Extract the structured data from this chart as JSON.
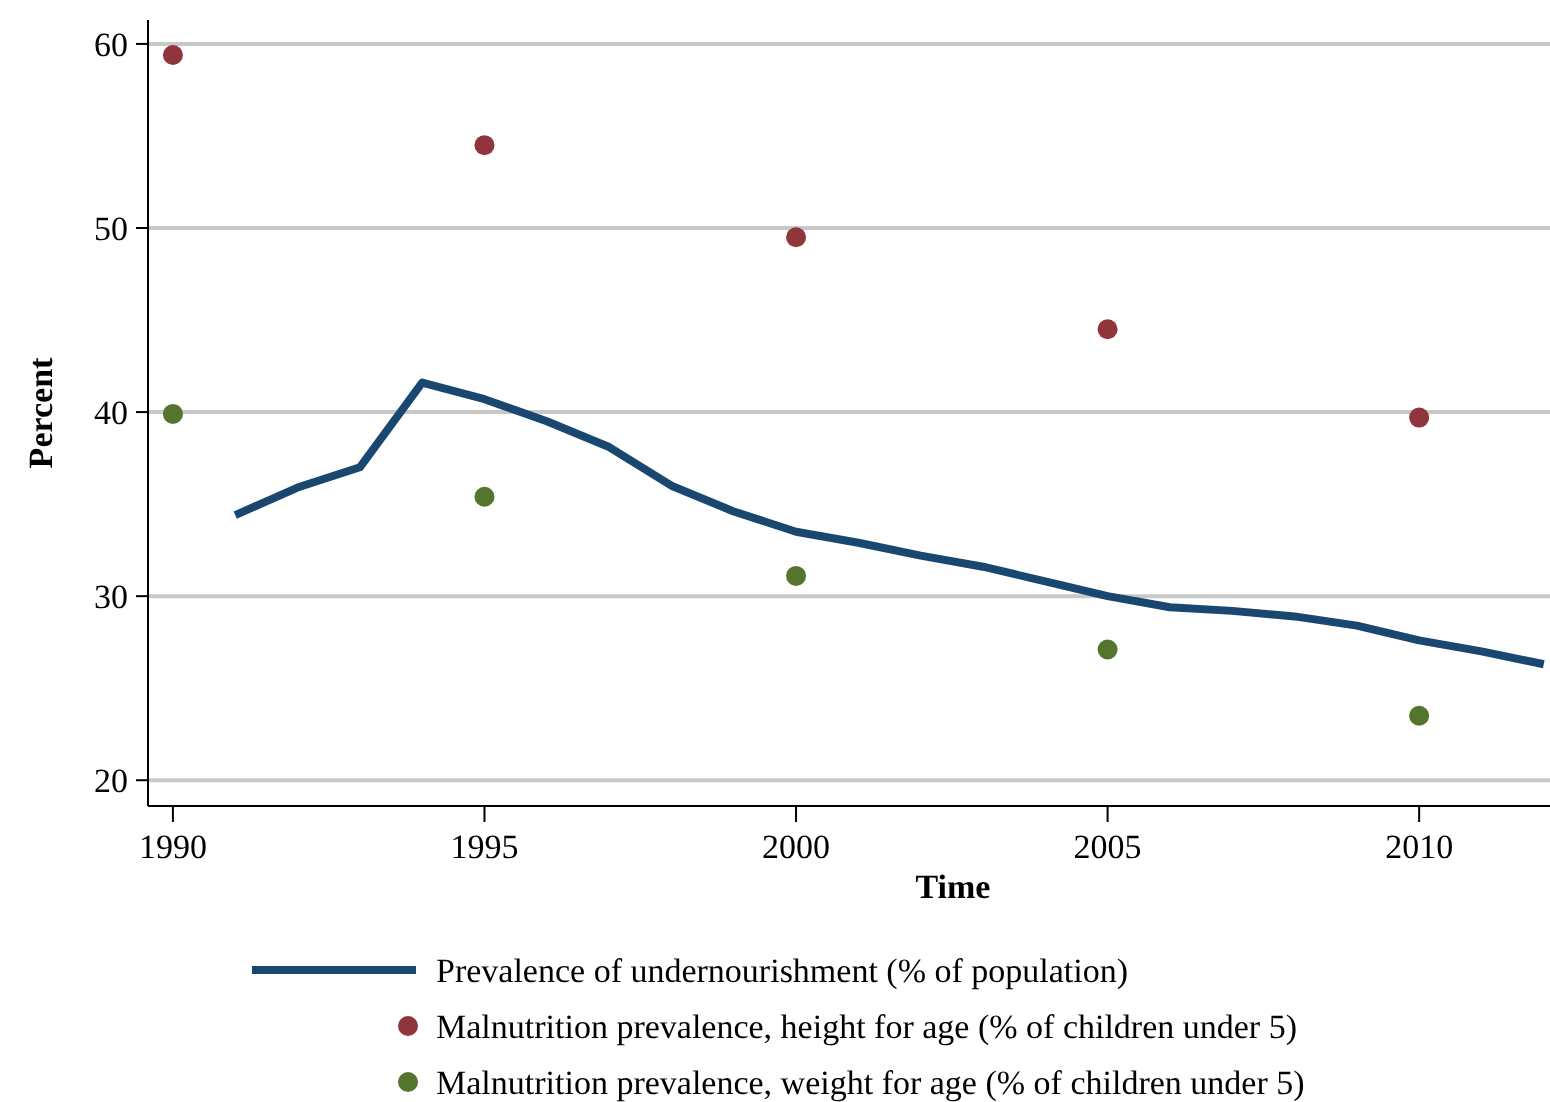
{
  "chart_data": {
    "type": "line",
    "xlabel": "Time",
    "ylabel": "Percent",
    "xlim": [
      1989.6,
      2012.1
    ],
    "ylim": [
      18.6,
      61.3
    ],
    "xticks": [
      1990,
      1995,
      2000,
      2005,
      2010
    ],
    "yticks": [
      20,
      30,
      40,
      50,
      60
    ],
    "grid": "y",
    "legend": "bottom",
    "series": [
      {
        "name": "Prevalence of undernourishment (% of population)",
        "color": "#1a476f",
        "x": [
          1991,
          1992,
          1993,
          1994,
          1995,
          1996,
          1997,
          1998,
          1999,
          2000,
          2001,
          2002,
          2003,
          2004,
          2005,
          2006,
          2007,
          2008,
          2009,
          2010,
          2011,
          2012
        ],
        "values": [
          34.4,
          35.9,
          37.0,
          41.6,
          40.7,
          39.5,
          38.1,
          36.0,
          34.6,
          33.5,
          32.9,
          32.2,
          31.6,
          30.8,
          30.0,
          29.4,
          29.2,
          28.9,
          28.4,
          27.6,
          27.0,
          26.3
        ]
      },
      {
        "name": "Malnutrition prevalence, height for age (% of children under 5)",
        "type": "scatter",
        "color": "#90353b",
        "marker": "circle",
        "x": [
          1990,
          1995,
          2000,
          2005,
          2010
        ],
        "values": [
          59.4,
          54.5,
          49.5,
          44.5,
          39.7
        ]
      },
      {
        "name": "Malnutrition prevalence, weight for age (% of children under 5)",
        "type": "scatter",
        "color": "#55752f",
        "marker": "circle",
        "x": [
          1990,
          1995,
          2000,
          2005,
          2010
        ],
        "values": [
          39.9,
          35.4,
          31.1,
          27.1,
          23.5
        ]
      }
    ]
  }
}
